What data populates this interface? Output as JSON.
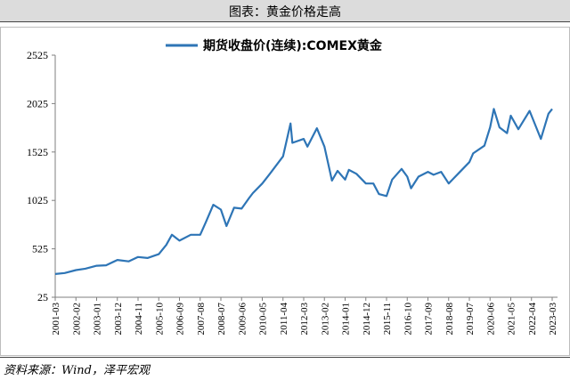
{
  "header": {
    "title": "图表：黄金价格走高"
  },
  "footer": {
    "source": "资料来源：Wind，泽平宏观"
  },
  "chart_data": {
    "type": "line",
    "title": "",
    "xlabel": "",
    "ylabel": "",
    "legend_position": "top-center",
    "grid": false,
    "ylim": [
      25,
      2525
    ],
    "yticks": [
      25,
      525,
      1025,
      1525,
      2025,
      2525
    ],
    "xticks": [
      "2001-03",
      "2002-02",
      "2003-01",
      "2003-12",
      "2004-11",
      "2005-10",
      "2006-09",
      "2007-08",
      "2008-07",
      "2009-06",
      "2010-05",
      "2011-04",
      "2012-03",
      "2013-02",
      "2014-01",
      "2014-12",
      "2015-11",
      "2016-10",
      "2017-09",
      "2018-08",
      "2019-07",
      "2020-06",
      "2021-05",
      "2022-04",
      "2023-03"
    ],
    "colors": {
      "line": "#2e75b6",
      "axis": "#7f7f7f"
    },
    "series": [
      {
        "name": "期货收盘价(连续):COMEX黄金",
        "x": [
          "2001-03",
          "2001-08",
          "2002-02",
          "2002-07",
          "2003-01",
          "2003-06",
          "2003-12",
          "2004-06",
          "2004-11",
          "2005-04",
          "2005-10",
          "2006-02",
          "2006-05",
          "2006-09",
          "2007-03",
          "2007-08",
          "2007-11",
          "2008-03",
          "2008-07",
          "2008-10",
          "2009-02",
          "2009-06",
          "2009-10",
          "2009-12",
          "2010-05",
          "2010-09",
          "2011-04",
          "2011-08",
          "2011-09",
          "2012-03",
          "2012-05",
          "2012-10",
          "2013-02",
          "2013-06",
          "2013-09",
          "2014-01",
          "2014-03",
          "2014-07",
          "2014-12",
          "2015-04",
          "2015-07",
          "2015-11",
          "2016-02",
          "2016-07",
          "2016-10",
          "2016-12",
          "2017-04",
          "2017-09",
          "2017-12",
          "2018-04",
          "2018-08",
          "2019-01",
          "2019-07",
          "2019-09",
          "2020-03",
          "2020-06",
          "2020-08",
          "2020-11",
          "2021-03",
          "2021-05",
          "2021-09",
          "2022-03",
          "2022-04",
          "2022-09",
          "2023-01",
          "2023-03"
        ],
        "y": [
          265,
          275,
          305,
          320,
          350,
          355,
          410,
          395,
          440,
          430,
          470,
          565,
          670,
          610,
          670,
          670,
          800,
          980,
          930,
          760,
          950,
          940,
          1050,
          1100,
          1200,
          1300,
          1480,
          1820,
          1620,
          1660,
          1580,
          1770,
          1580,
          1230,
          1330,
          1240,
          1340,
          1300,
          1200,
          1200,
          1090,
          1070,
          1240,
          1350,
          1270,
          1150,
          1270,
          1320,
          1290,
          1320,
          1200,
          1300,
          1420,
          1510,
          1590,
          1780,
          1970,
          1780,
          1720,
          1900,
          1760,
          1950,
          1900,
          1660,
          1920,
          1970
        ]
      }
    ]
  }
}
